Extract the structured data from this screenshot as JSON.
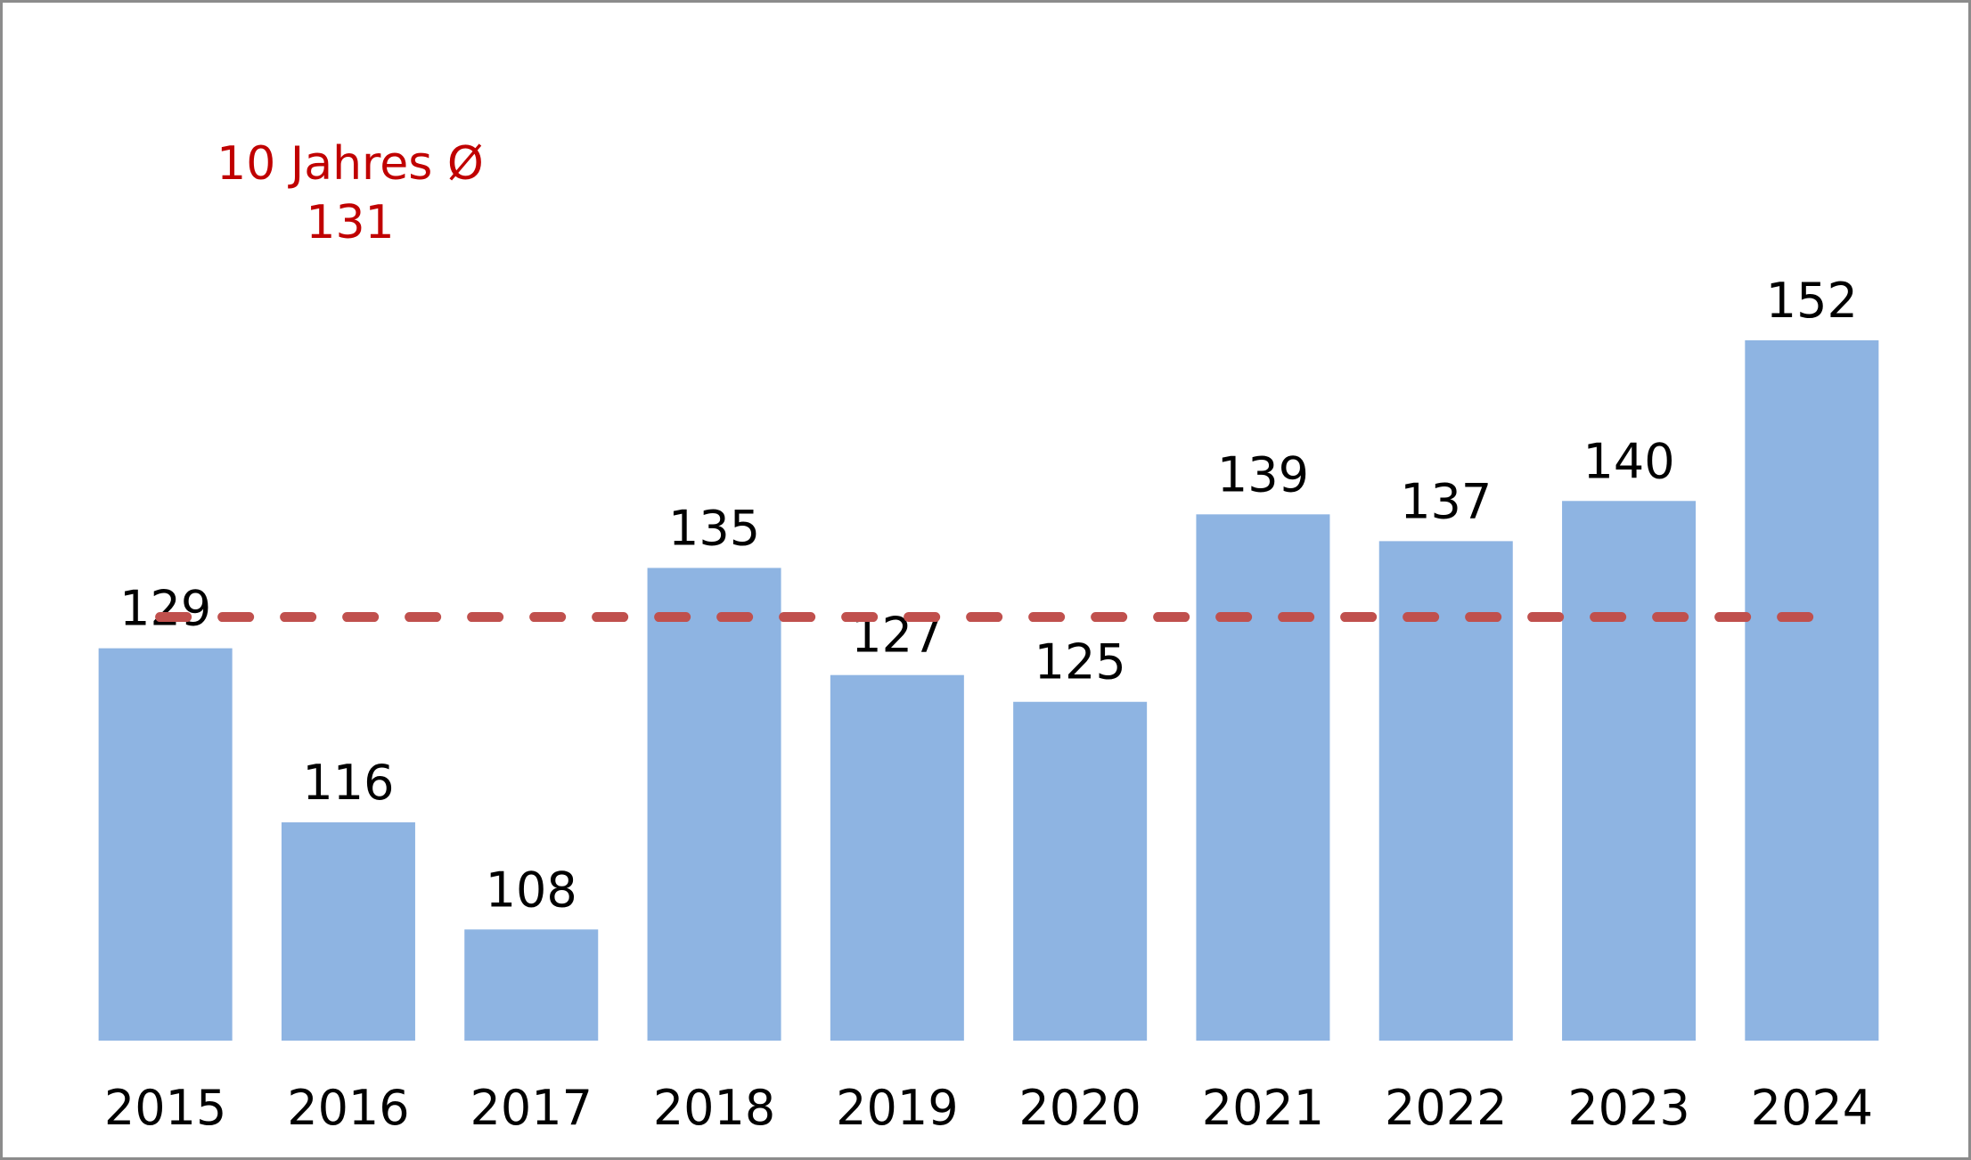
{
  "chart_data": {
    "type": "bar",
    "title": "",
    "xlabel": "",
    "ylabel": "",
    "categories": [
      "2015",
      "2016",
      "2017",
      "2018",
      "2019",
      "2020",
      "2021",
      "2022",
      "2023",
      "2024"
    ],
    "values": [
      129,
      116,
      108,
      135,
      127,
      125,
      139,
      137,
      140,
      152
    ],
    "data_labels": [
      "129",
      "116",
      "108",
      "135",
      "127",
      "125",
      "139",
      "137",
      "140",
      "152"
    ],
    "ylim": [
      100,
      152
    ],
    "grid": false,
    "legend": "none",
    "bar_color": "#8eb4e2",
    "reference_line": {
      "value": 131,
      "style": "dashed",
      "color": "#c0504d"
    },
    "annotation": {
      "line1": "10 Jahres Ø",
      "line2": "131",
      "color": "#c00000"
    }
  }
}
